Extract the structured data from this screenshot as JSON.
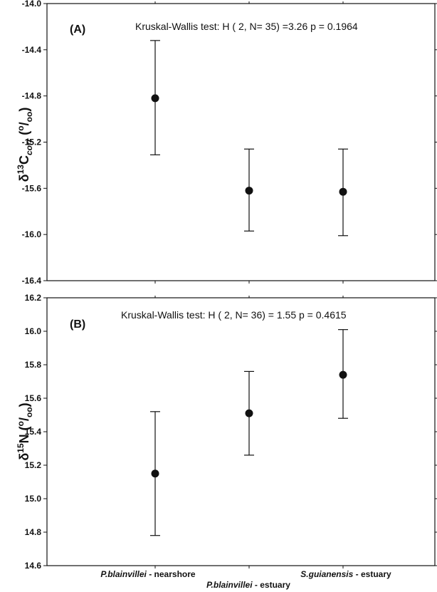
{
  "chart_data": [
    {
      "type": "scatter",
      "panel_label": "(A)",
      "annotation": "Kruskal-Wallis test: H ( 2, N= 35) =3.26  p = 0.1964",
      "ylabel_parts": [
        "δ",
        "13",
        "C",
        "corr",
        " (",
        "o",
        "/",
        "oo",
        ")"
      ],
      "ylim": [
        -16.4,
        -14.0
      ],
      "yticks": [
        -14.0,
        -14.4,
        -14.8,
        -15.2,
        -15.6,
        -16.0,
        -16.4
      ],
      "yticks_labels": [
        "-14.0",
        "-14.4",
        "-14.8",
        "-15.2",
        "-15.6",
        "-16.0",
        "-16.4"
      ],
      "categories": [
        "P.blainvillei - nearshore",
        "P.blainvillei - estuary",
        "S.guianensis - estuary"
      ],
      "values": [
        -14.82,
        -15.62,
        -15.63
      ],
      "err_low": [
        -15.31,
        -15.97,
        -16.01
      ],
      "err_high": [
        -14.32,
        -15.26,
        -15.26
      ],
      "grid": false
    },
    {
      "type": "scatter",
      "panel_label": "(B)",
      "annotation": "Kruskal-Wallis test: H ( 2, N= 36)  = 1.55 p = 0.4615",
      "ylabel_parts": [
        "δ",
        "15",
        "N",
        "",
        " (",
        "o",
        "/",
        "oo",
        ")"
      ],
      "ylim": [
        14.6,
        16.2
      ],
      "yticks": [
        16.2,
        16.0,
        15.8,
        15.6,
        15.4,
        15.2,
        15.0,
        14.8,
        14.6
      ],
      "yticks_labels": [
        "16.2",
        "16.0",
        "15.8",
        "15.6",
        "15.4",
        "15.2",
        "15.0",
        "14.8",
        "14.6"
      ],
      "categories": [
        "P.blainvillei - nearshore",
        "P.blainvillei - estuary",
        "S.guianensis - estuary"
      ],
      "values": [
        15.15,
        15.51,
        15.74
      ],
      "err_low": [
        14.78,
        15.26,
        15.48
      ],
      "err_high": [
        15.52,
        15.76,
        16.01
      ],
      "grid": false
    }
  ],
  "x_axis": {
    "labels": [
      {
        "italic": "P.blainvillei",
        "rest": " - nearshore"
      },
      {
        "italic": "P.blainvillei",
        "rest": " - estuary"
      },
      {
        "italic": "S.guianensis",
        "rest": " - estuary"
      }
    ]
  }
}
